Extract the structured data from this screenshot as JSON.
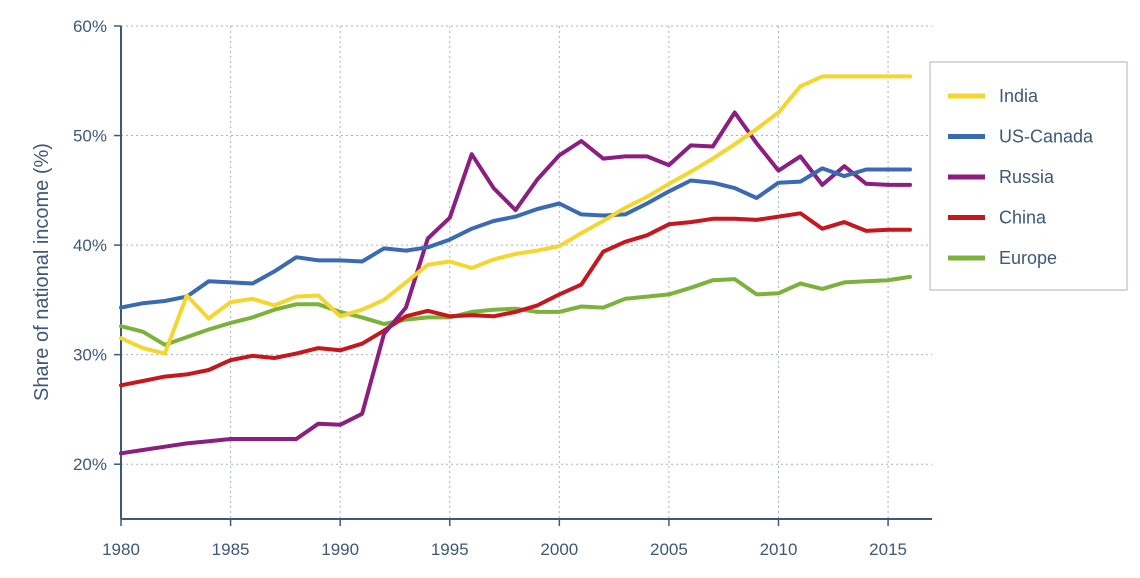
{
  "chart_data": {
    "type": "line",
    "title": "",
    "xlabel": "",
    "ylabel": "Share of national income (%)",
    "xlim": [
      1980,
      2016
    ],
    "ylim": [
      15,
      60
    ],
    "y_ticks": [
      20,
      30,
      40,
      50,
      60
    ],
    "y_tick_labels": [
      "20%",
      "30%",
      "40%",
      "50%",
      "60%"
    ],
    "x_ticks": [
      1980,
      1985,
      1990,
      1995,
      2000,
      2005,
      2010,
      2015
    ],
    "x_tick_labels": [
      "1980",
      "1985",
      "1990",
      "1995",
      "2000",
      "2005",
      "2010",
      "2015"
    ],
    "grid": true,
    "legend_position": "right",
    "x": [
      1980,
      1981,
      1982,
      1983,
      1984,
      1985,
      1986,
      1987,
      1988,
      1989,
      1990,
      1991,
      1992,
      1993,
      1994,
      1995,
      1996,
      1997,
      1998,
      1999,
      2000,
      2001,
      2002,
      2003,
      2004,
      2005,
      2006,
      2007,
      2008,
      2009,
      2010,
      2011,
      2012,
      2013,
      2014,
      2015,
      2016
    ],
    "series": [
      {
        "name": "India",
        "color": "#f5d52f",
        "values": [
          31.5,
          30.6,
          30.1,
          35.4,
          33.3,
          34.8,
          35.1,
          34.5,
          35.3,
          35.4,
          33.5,
          34.1,
          35.0,
          36.6,
          38.2,
          38.5,
          37.9,
          38.7,
          39.2,
          39.5,
          39.9,
          41.1,
          42.2,
          43.4,
          44.4,
          45.6,
          46.7,
          47.9,
          49.2,
          50.6,
          52.1,
          54.5,
          55.4,
          55.4,
          55.4,
          55.4,
          55.4
        ]
      },
      {
        "name": "US-Canada",
        "color": "#3a6bb2",
        "values": [
          34.3,
          34.7,
          34.9,
          35.3,
          36.7,
          36.6,
          36.5,
          37.6,
          38.9,
          38.6,
          38.6,
          38.5,
          39.7,
          39.5,
          39.8,
          40.5,
          41.5,
          42.2,
          42.6,
          43.3,
          43.8,
          42.8,
          42.7,
          42.8,
          43.8,
          44.9,
          45.9,
          45.7,
          45.2,
          44.3,
          45.7,
          45.8,
          47.0,
          46.3,
          46.9,
          46.9,
          46.9
        ]
      },
      {
        "name": "Russia",
        "color": "#8b1e7f",
        "values": [
          21.0,
          21.3,
          21.6,
          21.9,
          22.1,
          22.3,
          22.3,
          22.3,
          22.3,
          23.7,
          23.6,
          24.6,
          31.9,
          34.3,
          40.6,
          42.5,
          48.3,
          45.2,
          43.2,
          46.0,
          48.2,
          49.5,
          47.9,
          48.1,
          48.1,
          47.3,
          49.1,
          49.0,
          52.1,
          49.3,
          46.8,
          48.1,
          45.5,
          47.2,
          45.6,
          45.5,
          45.5
        ]
      },
      {
        "name": "China",
        "color": "#c6161e",
        "values": [
          27.2,
          27.6,
          28.0,
          28.2,
          28.6,
          29.5,
          29.9,
          29.7,
          30.1,
          30.6,
          30.4,
          31.0,
          32.2,
          33.5,
          34.0,
          33.5,
          33.6,
          33.5,
          33.9,
          34.5,
          35.5,
          36.4,
          39.4,
          40.3,
          40.9,
          41.9,
          42.1,
          42.4,
          42.4,
          42.3,
          42.6,
          42.9,
          41.5,
          42.1,
          41.3,
          41.4,
          41.4
        ]
      },
      {
        "name": "Europe",
        "color": "#7cb23b",
        "values": [
          32.6,
          32.1,
          30.9,
          31.6,
          32.3,
          32.9,
          33.4,
          34.1,
          34.6,
          34.6,
          33.9,
          33.4,
          32.8,
          33.2,
          33.4,
          33.4,
          33.9,
          34.1,
          34.2,
          33.9,
          33.9,
          34.4,
          34.3,
          35.1,
          35.3,
          35.5,
          36.1,
          36.8,
          36.9,
          35.5,
          35.6,
          36.5,
          36.0,
          36.6,
          36.7,
          36.8,
          37.1
        ]
      }
    ]
  }
}
